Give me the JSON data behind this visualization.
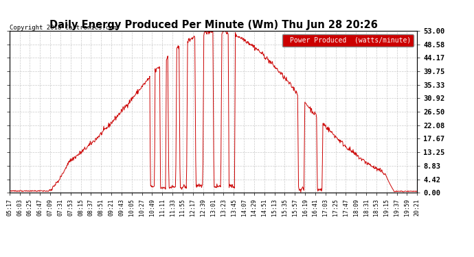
{
  "title": "Daily Energy Produced Per Minute (Wm) Thu Jun 28 20:26",
  "copyright": "Copyright 2018 Cartronics.com",
  "legend_label": "Power Produced  (watts/minute)",
  "legend_bg": "#cc0000",
  "legend_fg": "#ffffff",
  "line_color": "#cc0000",
  "bg_color": "#ffffff",
  "grid_color": "#bbbbbb",
  "ymax": 53.0,
  "ymin": 0.0,
  "yticks": [
    0.0,
    4.42,
    8.83,
    13.25,
    17.67,
    22.08,
    26.5,
    30.92,
    35.33,
    39.75,
    44.17,
    48.58,
    53.0
  ],
  "xtick_labels": [
    "05:17",
    "06:03",
    "06:25",
    "06:47",
    "07:09",
    "07:31",
    "07:53",
    "08:15",
    "08:37",
    "08:51",
    "09:21",
    "09:43",
    "10:05",
    "10:27",
    "10:49",
    "11:11",
    "11:33",
    "11:55",
    "12:17",
    "12:39",
    "13:01",
    "13:23",
    "13:45",
    "14:07",
    "14:29",
    "14:51",
    "15:13",
    "15:35",
    "15:57",
    "16:19",
    "16:41",
    "17:03",
    "17:25",
    "17:47",
    "18:09",
    "18:31",
    "18:53",
    "19:15",
    "19:37",
    "19:59",
    "20:21"
  ]
}
